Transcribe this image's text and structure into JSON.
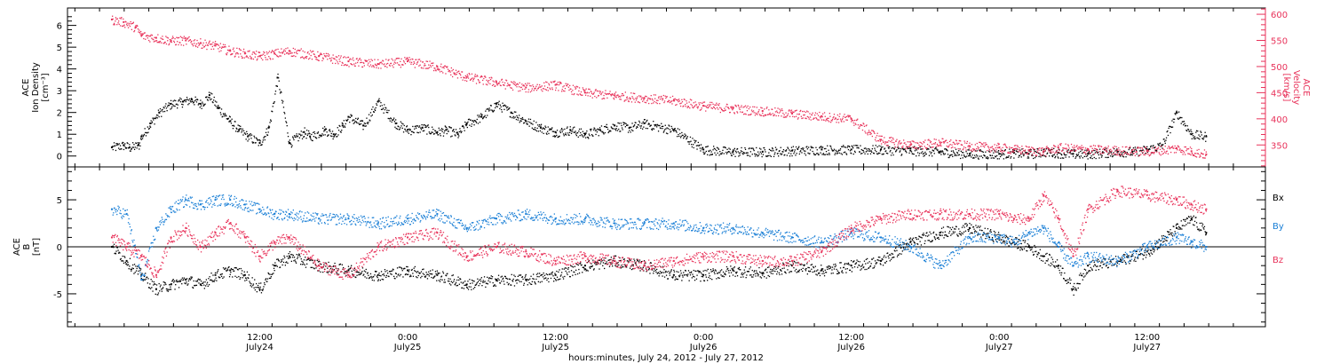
{
  "chart_data": [
    {
      "type": "scatter",
      "panel": "top",
      "ylabel_left": [
        "ACE",
        "Ion Density",
        "[cm⁻³]"
      ],
      "ylabel_right": [
        "ACE",
        "Velocity",
        "[km/s]"
      ],
      "ylim_left": [
        -0.5,
        6.8
      ],
      "ylim_right": [
        308,
        612
      ],
      "yticks_left": [
        0,
        1,
        2,
        3,
        4,
        5,
        6
      ],
      "yticks_right": [
        350,
        400,
        450,
        500,
        550,
        600
      ],
      "series": [
        {
          "axis": "left",
          "color": "#000000",
          "x": [
            0.0,
            0.04,
            0.06,
            0.09,
            0.1,
            0.13,
            0.16,
            0.2,
            0.24,
            0.27,
            0.3,
            0.33,
            0.36,
            0.4,
            0.43,
            0.46,
            0.5,
            0.53,
            0.56,
            0.6,
            0.65,
            0.67,
            0.72,
            0.75,
            0.78,
            0.8,
            0.85,
            0.9,
            0.96,
            1.0,
            1.05,
            1.1,
            1.13,
            1.17,
            1.2,
            1.25,
            1.3,
            1.35,
            1.4,
            1.45,
            1.5,
            1.55,
            1.6,
            1.65,
            1.7,
            1.75,
            1.8,
            1.9,
            2.0,
            2.1,
            2.2,
            2.3,
            2.4,
            2.5,
            2.6,
            2.7,
            2.8,
            2.9,
            3.0,
            3.05,
            3.1,
            3.15,
            3.2,
            3.25,
            3.3,
            3.35,
            3.4,
            3.45,
            3.5,
            3.55,
            3.6,
            3.65,
            3.7
          ],
          "y": [
            0.4,
            0.5,
            0.4,
            0.5,
            0.9,
            1.5,
            2.0,
            2.4,
            2.5,
            2.6,
            2.4,
            2.8,
            2.2,
            1.6,
            1.2,
            0.9,
            0.6,
            1.3,
            3.6,
            0.6,
            1.1,
            0.9,
            1.2,
            1.0,
            1.4,
            1.8,
            1.4,
            2.5,
            1.5,
            1.2,
            1.3,
            1.1,
            1.2,
            1.0,
            1.5,
            1.8,
            2.4,
            2.0,
            1.6,
            1.3,
            1.1,
            1.2,
            1.0,
            1.2,
            1.4,
            1.3,
            1.5,
            1.2,
            0.3,
            0.2,
            0.2,
            0.25,
            0.3,
            0.3,
            0.3,
            0.25,
            0.2,
            0.1,
            0.1,
            0.15,
            0.1,
            0.2,
            0.15,
            0.1,
            0.1,
            0.15,
            0.2,
            0.2,
            0.3,
            0.5,
            2.0,
            1.0,
            0.9
          ]
        },
        {
          "axis": "right",
          "color": "#e8325a",
          "x": [
            0.0,
            0.04,
            0.08,
            0.1,
            0.15,
            0.2,
            0.25,
            0.3,
            0.35,
            0.4,
            0.45,
            0.5,
            0.55,
            0.6,
            0.7,
            0.8,
            0.9,
            1.0,
            1.1,
            1.2,
            1.3,
            1.4,
            1.5,
            1.6,
            1.7,
            1.8,
            1.9,
            2.0,
            2.1,
            2.2,
            2.3,
            2.4,
            2.5,
            2.6,
            2.7,
            2.8,
            2.9,
            3.0,
            3.05,
            3.1,
            3.15,
            3.2,
            3.3,
            3.4,
            3.5,
            3.6,
            3.65,
            3.7
          ],
          "y": [
            590,
            585,
            575,
            560,
            555,
            550,
            550,
            545,
            540,
            530,
            525,
            520,
            525,
            530,
            520,
            510,
            505,
            510,
            500,
            480,
            470,
            460,
            465,
            450,
            445,
            440,
            435,
            425,
            420,
            415,
            410,
            405,
            400,
            360,
            350,
            355,
            348,
            345,
            342,
            340,
            338,
            345,
            342,
            340,
            338,
            344,
            338,
            332
          ]
        }
      ]
    },
    {
      "type": "scatter",
      "panel": "bottom",
      "ylabel": [
        "ACE",
        "B",
        "[nT]"
      ],
      "ylim": [
        -8.5,
        8.5
      ],
      "yticks": [
        -5,
        0,
        5
      ],
      "zero_line": true,
      "series": [
        {
          "name": "Bx",
          "color": "#000000",
          "x": [
            0.0,
            0.05,
            0.1,
            0.15,
            0.2,
            0.25,
            0.3,
            0.35,
            0.4,
            0.45,
            0.5,
            0.55,
            0.6,
            0.7,
            0.8,
            0.9,
            1.0,
            1.1,
            1.2,
            1.3,
            1.4,
            1.5,
            1.6,
            1.7,
            1.8,
            1.9,
            2.0,
            2.1,
            2.2,
            2.3,
            2.4,
            2.5,
            2.6,
            2.7,
            2.8,
            2.9,
            3.0,
            3.05,
            3.1,
            3.15,
            3.2,
            3.25,
            3.3,
            3.4,
            3.5,
            3.6,
            3.65,
            3.7
          ],
          "y": [
            0.0,
            -1.5,
            -3.0,
            -4.5,
            -4.0,
            -3.5,
            -4.0,
            -3.0,
            -2.5,
            -3.0,
            -4.5,
            -2.0,
            -1.0,
            -2.0,
            -2.5,
            -3.0,
            -2.5,
            -3.0,
            -4.0,
            -3.5,
            -3.5,
            -3.0,
            -2.0,
            -1.5,
            -2.0,
            -3.0,
            -3.0,
            -2.5,
            -2.8,
            -2.0,
            -2.5,
            -2.0,
            -1.5,
            0.5,
            1.5,
            2.0,
            1.0,
            0.5,
            0.0,
            -1.0,
            -2.0,
            -4.5,
            -2.0,
            -1.5,
            -0.5,
            2.0,
            3.0,
            1.5
          ]
        },
        {
          "name": "By",
          "color": "#1a7fd6",
          "x": [
            0.0,
            0.05,
            0.1,
            0.15,
            0.2,
            0.25,
            0.3,
            0.35,
            0.4,
            0.45,
            0.5,
            0.55,
            0.6,
            0.7,
            0.8,
            0.9,
            1.0,
            1.1,
            1.2,
            1.3,
            1.4,
            1.5,
            1.6,
            1.7,
            1.8,
            1.9,
            2.0,
            2.1,
            2.2,
            2.3,
            2.4,
            2.5,
            2.6,
            2.7,
            2.8,
            2.9,
            3.0,
            3.05,
            3.1,
            3.15,
            3.2,
            3.25,
            3.3,
            3.4,
            3.5,
            3.6,
            3.65,
            3.7
          ],
          "y": [
            4.0,
            3.5,
            -3.5,
            2.0,
            4.0,
            5.0,
            4.5,
            5.0,
            5.0,
            4.5,
            4.0,
            3.5,
            3.5,
            3.0,
            3.0,
            2.5,
            3.0,
            3.5,
            2.0,
            3.0,
            3.5,
            3.0,
            3.0,
            2.5,
            2.5,
            2.5,
            2.0,
            2.0,
            1.5,
            1.0,
            0.5,
            1.5,
            1.0,
            0.0,
            -2.0,
            1.0,
            1.0,
            0.5,
            1.5,
            2.0,
            0.0,
            -2.0,
            -1.0,
            -1.5,
            0.0,
            1.0,
            0.5,
            0.0
          ]
        },
        {
          "name": "Bz",
          "color": "#e8325a",
          "x": [
            0.0,
            0.05,
            0.1,
            0.15,
            0.2,
            0.25,
            0.3,
            0.35,
            0.4,
            0.45,
            0.5,
            0.55,
            0.6,
            0.7,
            0.8,
            0.9,
            1.0,
            1.1,
            1.2,
            1.3,
            1.4,
            1.5,
            1.6,
            1.7,
            1.8,
            1.9,
            2.0,
            2.1,
            2.2,
            2.3,
            2.4,
            2.5,
            2.6,
            2.7,
            2.8,
            2.9,
            3.0,
            3.05,
            3.1,
            3.15,
            3.2,
            3.25,
            3.3,
            3.4,
            3.5,
            3.6,
            3.65,
            3.7
          ],
          "y": [
            1.0,
            0.0,
            -1.0,
            -3.0,
            1.0,
            2.0,
            0.0,
            1.5,
            2.5,
            1.0,
            -1.0,
            0.5,
            1.0,
            -2.0,
            -3.0,
            0.0,
            1.0,
            1.5,
            -1.0,
            0.0,
            -0.5,
            -1.5,
            -1.0,
            -1.5,
            -2.0,
            -1.5,
            -1.0,
            -1.0,
            -1.5,
            -1.5,
            -0.5,
            2.0,
            3.0,
            3.5,
            3.5,
            3.5,
            3.5,
            3.0,
            3.0,
            5.5,
            3.0,
            -1.0,
            4.0,
            6.0,
            5.5,
            5.0,
            4.5,
            4.0
          ]
        }
      ],
      "legend": [
        "Bx",
        "By",
        "Bz"
      ],
      "legend_placement": "right"
    }
  ],
  "x_axis": {
    "unit": "days since July 24, 2012 00:00",
    "xlim": [
      -0.15,
      3.9
    ],
    "ticks": [
      {
        "value": 0.5,
        "time": "12:00",
        "date": "July24"
      },
      {
        "value": 1.0,
        "time": "0:00",
        "date": "July25"
      },
      {
        "value": 1.5,
        "time": "12:00",
        "date": "July25"
      },
      {
        "value": 2.0,
        "time": "0:00",
        "date": "July26"
      },
      {
        "value": 2.5,
        "time": "12:00",
        "date": "July26"
      },
      {
        "value": 3.0,
        "time": "0:00",
        "date": "July27"
      },
      {
        "value": 3.5,
        "time": "12:00",
        "date": "July27"
      }
    ],
    "xlabel": "hours:minutes, July 24, 2012 - July 27, 2012"
  },
  "colors": {
    "velocity": "#e8325a",
    "density": "#000000",
    "bx": "#000000",
    "by": "#1a7fd6",
    "bz": "#e8325a"
  }
}
